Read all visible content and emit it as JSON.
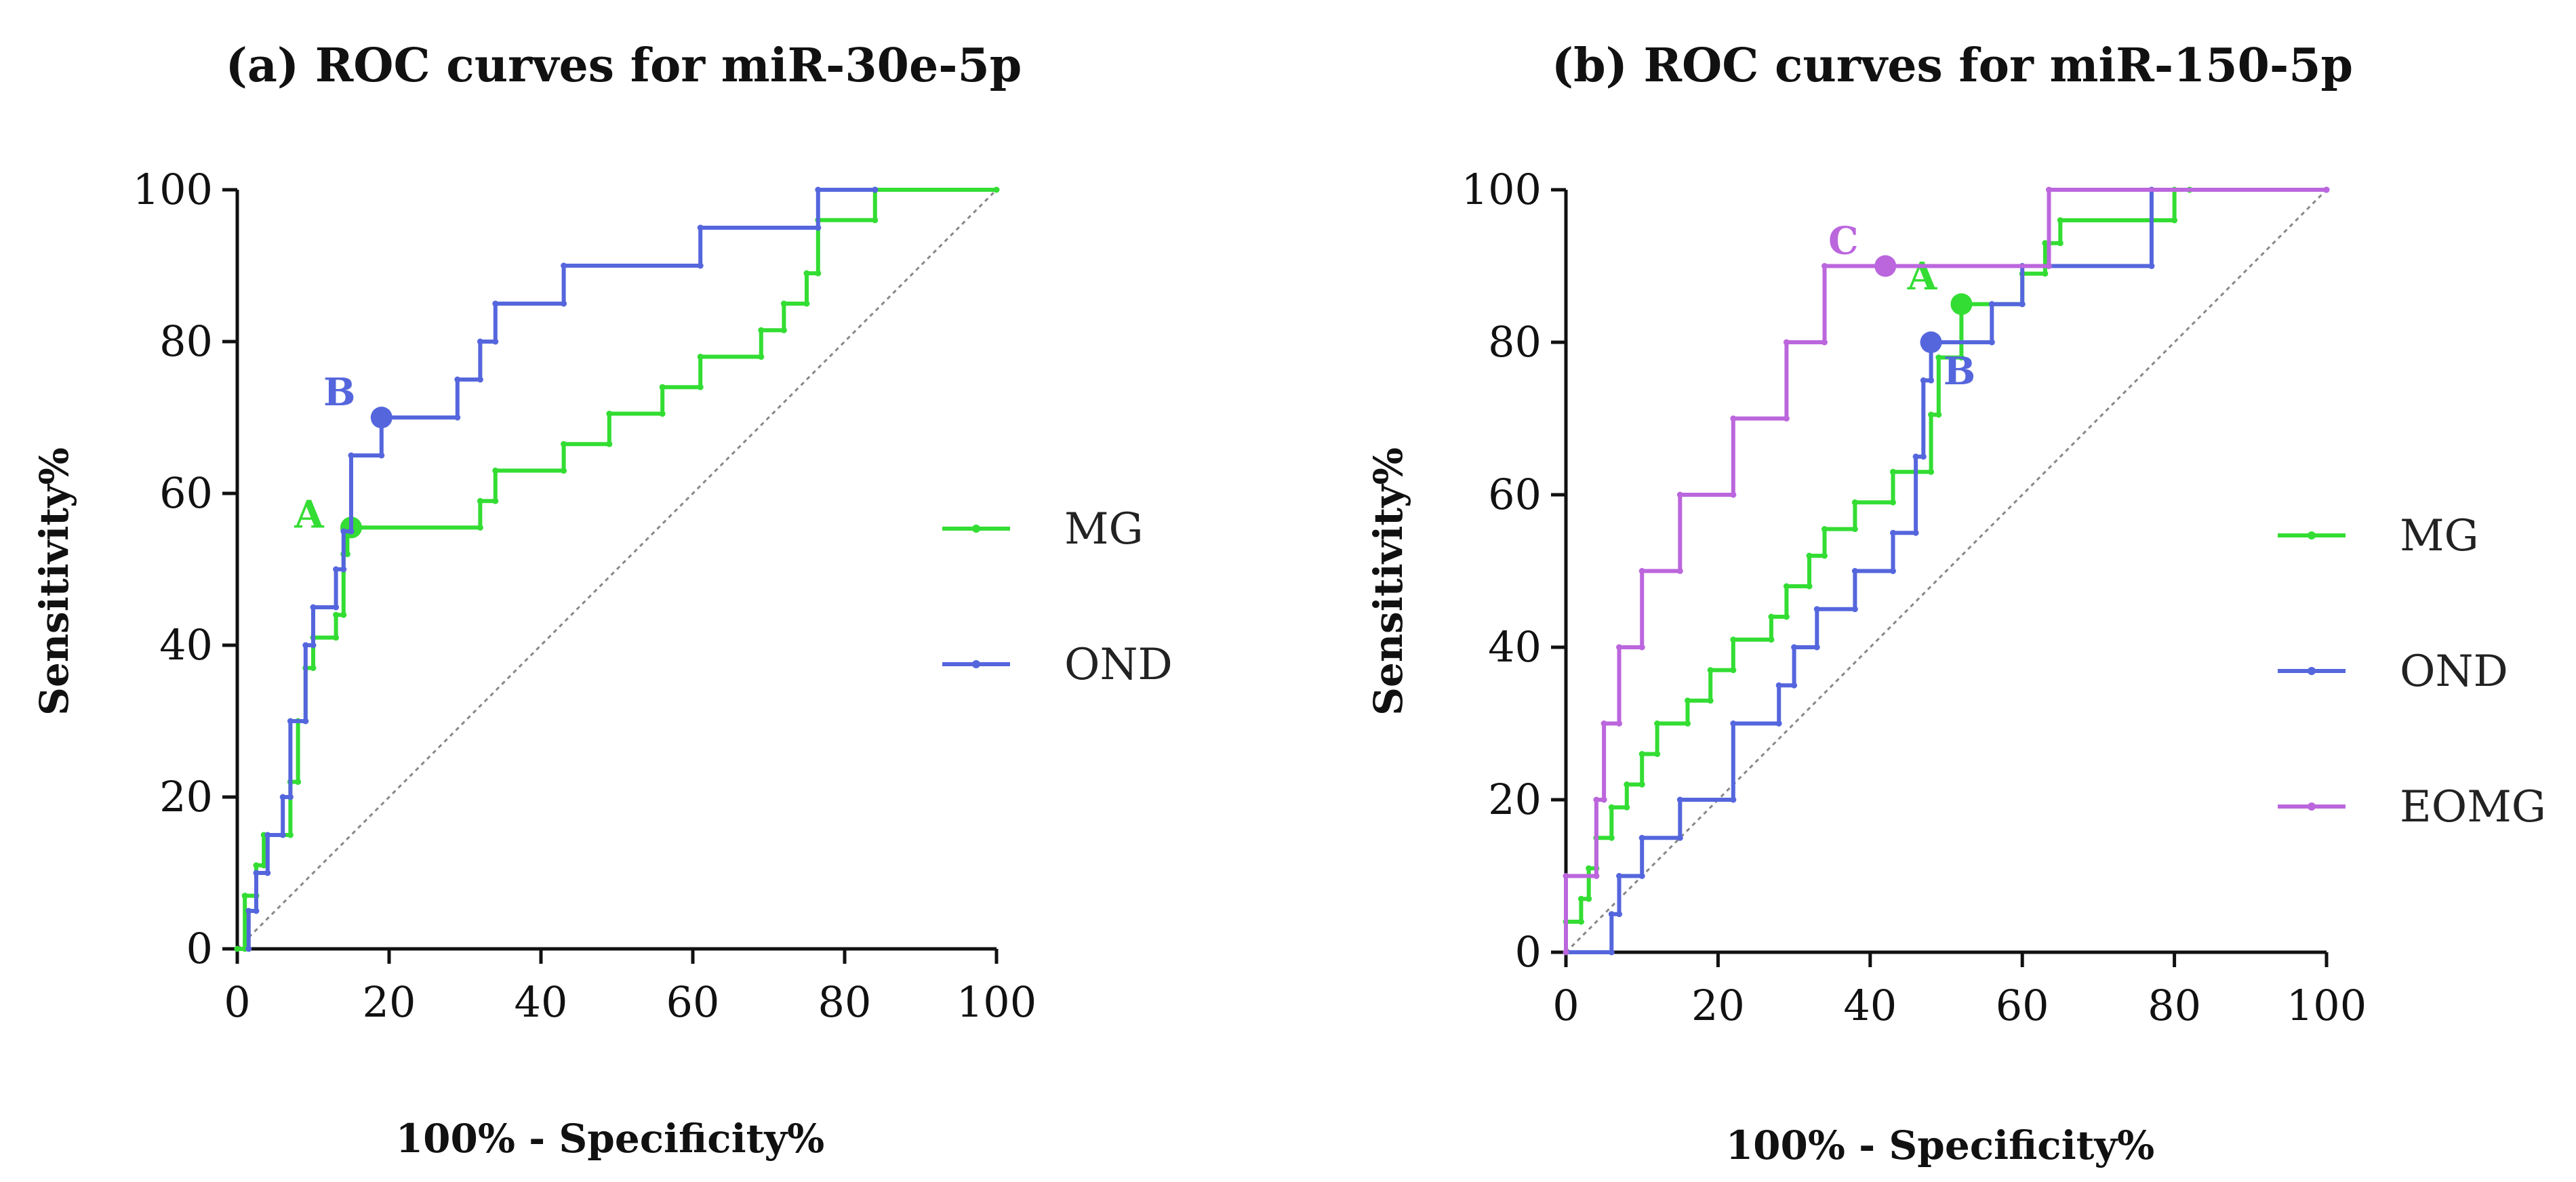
{
  "chart_data": [
    {
      "type": "line",
      "title": "(a) ROC curves for miR-30e-5p",
      "xlabel": "100% - Specificity%",
      "ylabel": "Sensitivity%",
      "xlim": [
        0,
        100
      ],
      "ylim": [
        0,
        100
      ],
      "xticks": [
        "0",
        "20",
        "40",
        "60",
        "80",
        "100"
      ],
      "yticks": [
        "0",
        "20",
        "40",
        "60",
        "80",
        "100"
      ],
      "grid": false,
      "legend_position": "right",
      "series": [
        {
          "name": "MG",
          "color": "#33dd33",
          "x": [
            0,
            1,
            1,
            2.5,
            2.5,
            3.5,
            3.5,
            7,
            7,
            8,
            8,
            9,
            9,
            10,
            10,
            13,
            13,
            14,
            14,
            14.5,
            14.5,
            32,
            32,
            34,
            34,
            43,
            43,
            49,
            49,
            56,
            56,
            61,
            61,
            69,
            69,
            72,
            72,
            75,
            75,
            76.5,
            76.5,
            84,
            84,
            100
          ],
          "y": [
            0,
            0,
            7,
            7,
            11,
            11,
            15,
            15,
            22,
            22,
            30,
            30,
            37,
            37,
            41,
            41,
            44,
            44,
            52,
            52,
            55.5,
            55.5,
            59,
            59,
            63,
            63,
            66.5,
            66.5,
            70.5,
            70.5,
            74,
            74,
            78,
            78,
            81.5,
            81.5,
            85,
            85,
            89,
            89,
            96,
            96,
            100,
            100
          ],
          "cutoff": {
            "label": "A",
            "x": 15,
            "y": 55.5
          }
        },
        {
          "name": "OND",
          "color": "#5566dd",
          "x": [
            1.5,
            1.5,
            2.5,
            2.5,
            4,
            4,
            6,
            6,
            7,
            7,
            9,
            9,
            10,
            10,
            13,
            13,
            14,
            14,
            15,
            15,
            19,
            19,
            29,
            29,
            32,
            32,
            34,
            34,
            43,
            43,
            61,
            61,
            76.5,
            76.5,
            84,
            84
          ],
          "y": [
            0,
            5,
            5,
            10,
            10,
            15,
            15,
            20,
            20,
            30,
            30,
            40,
            40,
            45,
            45,
            50,
            50,
            55,
            55,
            65,
            65,
            70,
            70,
            75,
            75,
            80,
            80,
            85,
            85,
            90,
            90,
            95,
            95,
            100,
            100,
            100
          ],
          "cutoff": {
            "label": "B",
            "x": 19,
            "y": 70
          }
        }
      ],
      "reference_line": [
        [
          0,
          0
        ],
        [
          100,
          100
        ]
      ]
    },
    {
      "type": "line",
      "title": "(b) ROC curves for miR-150-5p",
      "xlabel": "100% - Specificity%",
      "ylabel": "Sensitivity%",
      "xlim": [
        0,
        100
      ],
      "ylim": [
        0,
        100
      ],
      "xticks": [
        "0",
        "20",
        "40",
        "60",
        "80",
        "100"
      ],
      "yticks": [
        "0",
        "20",
        "40",
        "60",
        "80",
        "100"
      ],
      "grid": false,
      "legend_position": "right",
      "series": [
        {
          "name": "MG",
          "color": "#33dd33",
          "x": [
            0,
            0,
            2,
            2,
            3,
            3,
            4,
            4,
            6,
            6,
            8,
            8,
            10,
            10,
            12,
            12,
            16,
            16,
            19,
            19,
            22,
            22,
            27,
            27,
            29,
            29,
            32,
            32,
            34,
            34,
            38,
            38,
            43,
            43,
            48,
            48,
            49,
            49,
            52,
            52,
            60,
            60,
            63,
            63,
            65,
            65,
            80,
            80,
            82,
            82
          ],
          "y": [
            0,
            4,
            4,
            7,
            7,
            11,
            11,
            15,
            15,
            19,
            19,
            22,
            22,
            26,
            26,
            30,
            30,
            33,
            33,
            37,
            37,
            41,
            41,
            44,
            44,
            48,
            48,
            52,
            52,
            55.5,
            55.5,
            59,
            59,
            63,
            63,
            70.5,
            70.5,
            78,
            78,
            85,
            85,
            89,
            89,
            93,
            93,
            96,
            96,
            100,
            100,
            100
          ],
          "cutoff": {
            "label": "A",
            "x": 52,
            "y": 85
          }
        },
        {
          "name": "OND",
          "color": "#5566dd",
          "x": [
            0,
            6,
            6,
            7,
            7,
            10,
            10,
            15,
            15,
            22,
            22,
            28,
            28,
            30,
            30,
            33,
            33,
            38,
            38,
            43,
            43,
            46,
            46,
            47,
            47,
            48,
            48,
            56,
            56,
            60,
            60,
            77,
            77,
            100
          ],
          "y": [
            0,
            0,
            5,
            5,
            10,
            10,
            15,
            15,
            20,
            20,
            30,
            30,
            35,
            35,
            40,
            40,
            45,
            45,
            50,
            50,
            55,
            55,
            65,
            65,
            75,
            75,
            80,
            80,
            85,
            85,
            90,
            90,
            100,
            100
          ],
          "cutoff": {
            "label": "B",
            "x": 48,
            "y": 80
          }
        },
        {
          "name": "EOMG",
          "color": "#bb66dd",
          "x": [
            0,
            0,
            4,
            4,
            5,
            5,
            7,
            7,
            10,
            10,
            15,
            15,
            22,
            22,
            29,
            29,
            34,
            34,
            42,
            42,
            63.5,
            63.5,
            100
          ],
          "y": [
            0,
            10,
            10,
            20,
            20,
            30,
            30,
            40,
            40,
            50,
            50,
            60,
            60,
            70,
            70,
            80,
            80,
            90,
            90,
            90,
            90,
            100,
            100
          ],
          "cutoff": {
            "label": "C",
            "x": 42,
            "y": 90
          }
        }
      ],
      "reference_line": [
        [
          0,
          0
        ],
        [
          100,
          100
        ]
      ]
    }
  ]
}
